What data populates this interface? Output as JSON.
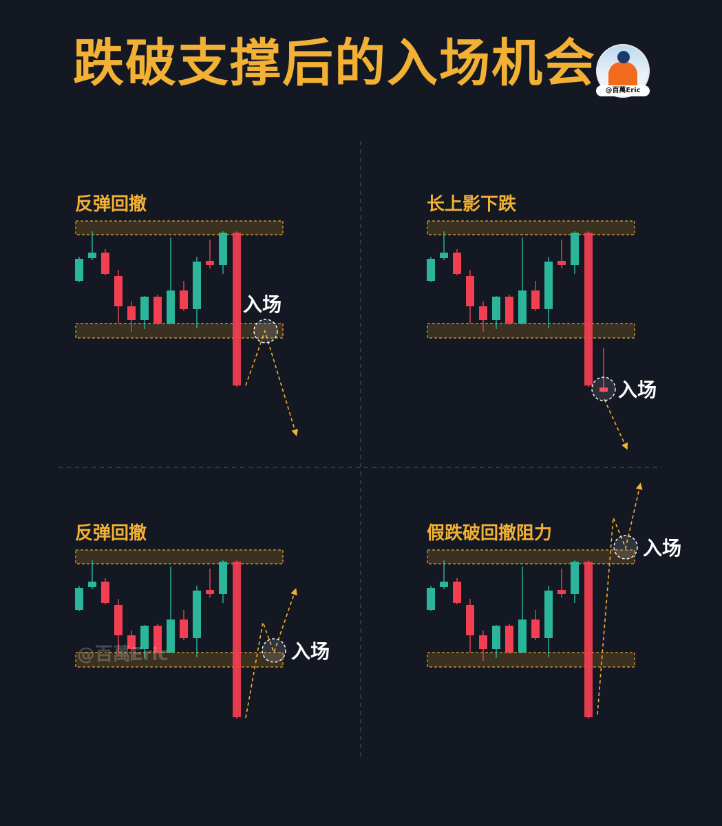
{
  "title": "跌破支撑后的入场机会",
  "author_badge": "@百萬Eric",
  "watermark": "@百萬Eric",
  "colors": {
    "background": "#141822",
    "title": "#f2b135",
    "bull": "#2bb59a",
    "bear": "#f23f52",
    "zone_fill": "#3a3121",
    "zone_border": "#e0a43a",
    "arrow": "#f2b135",
    "label": "#ffffff"
  },
  "chart_data": [
    {
      "type": "candlestick",
      "title": "反弹回撤",
      "entry_label": "入场",
      "scenario": "bounce-retest-short",
      "zones": [
        "resistance",
        "support"
      ],
      "price_path": "break support, bounce to support, continue down"
    },
    {
      "type": "candlestick",
      "title": "长上影下跌",
      "entry_label": "入场",
      "scenario": "long-upper-wick-short",
      "zones": [
        "resistance",
        "support"
      ],
      "price_path": "break support, long upper wick candle, continue down"
    },
    {
      "type": "candlestick",
      "title": "反弹回撤",
      "entry_label": "入场",
      "scenario": "bounce-retest-long",
      "zones": [
        "resistance",
        "support"
      ],
      "price_path": "break support, reclaim support, move up"
    },
    {
      "type": "candlestick",
      "title": "假跌破回撤阻力",
      "entry_label": "入场",
      "scenario": "false-break-retest-resistance",
      "zones": [
        "resistance",
        "support"
      ],
      "price_path": "false break of support, rally to resistance, break up"
    }
  ]
}
